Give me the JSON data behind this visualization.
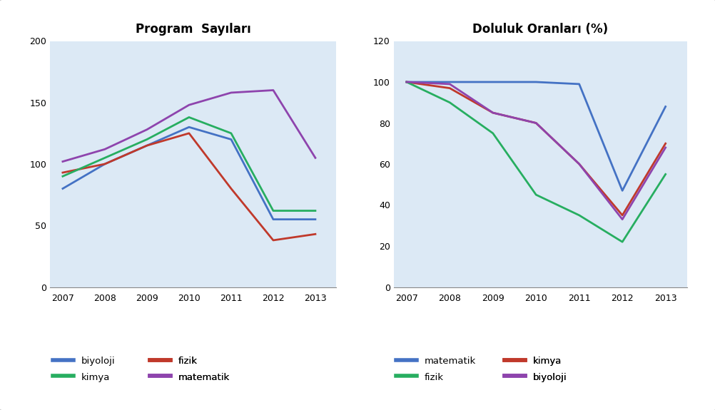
{
  "years": [
    2007,
    2008,
    2009,
    2010,
    2011,
    2012,
    2013
  ],
  "left_title": "Program  Sayıları",
  "right_title": "Doluluk Oranları (%)",
  "left_series": {
    "biyoloji": [
      80,
      100,
      115,
      130,
      120,
      55,
      55
    ],
    "fizik": [
      93,
      100,
      115,
      125,
      80,
      38,
      43
    ],
    "kimya": [
      90,
      105,
      120,
      138,
      125,
      62,
      62
    ],
    "matematik": [
      102,
      112,
      128,
      148,
      158,
      160,
      105
    ]
  },
  "left_colors": {
    "biyoloji": "#4472C4",
    "fizik": "#C0392B",
    "kimya": "#27AE60",
    "matematik": "#8E44AD"
  },
  "right_series": {
    "matematik": [
      100,
      100,
      100,
      100,
      99,
      47,
      88
    ],
    "kimya": [
      100,
      97,
      85,
      80,
      60,
      35,
      70
    ],
    "fizik": [
      100,
      90,
      75,
      45,
      35,
      22,
      55
    ],
    "biyoloji": [
      100,
      99,
      85,
      80,
      60,
      33,
      68
    ]
  },
  "right_colors": {
    "matematik": "#4472C4",
    "kimya": "#C0392B",
    "fizik": "#27AE60",
    "biyoloji": "#8E44AD"
  },
  "left_ylim": [
    0,
    200
  ],
  "left_yticks": [
    0,
    50,
    100,
    150,
    200
  ],
  "right_ylim": [
    0,
    120
  ],
  "right_yticks": [
    0,
    20,
    40,
    60,
    80,
    100,
    120
  ],
  "bg_color": "#DCE9F5",
  "fig_bg": "#FFFFFF",
  "legend_left_order": [
    "biyoloji",
    "fizik",
    "kimya",
    "matematik"
  ],
  "legend_right_order": [
    "matematik",
    "kimya",
    "fizik",
    "biyoloji"
  ]
}
